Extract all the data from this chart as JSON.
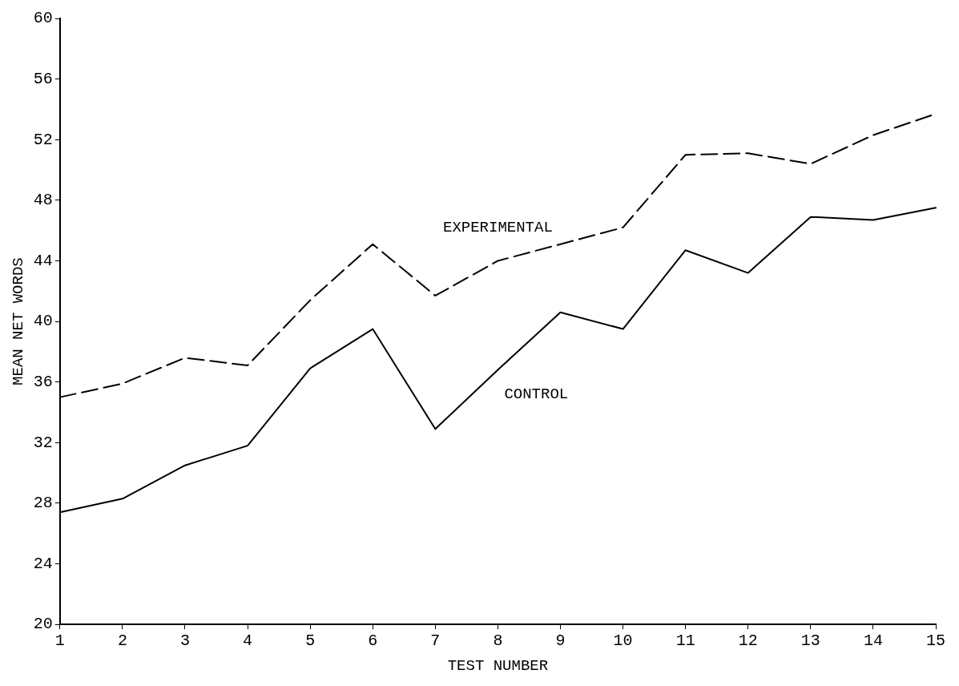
{
  "chart_data": {
    "type": "line",
    "xlabel": "TEST NUMBER",
    "ylabel": "MEAN NET WORDS",
    "x": [
      1,
      2,
      3,
      4,
      5,
      6,
      7,
      8,
      9,
      10,
      11,
      12,
      13,
      14,
      15
    ],
    "xlim": [
      1,
      15
    ],
    "xticks": [
      1,
      2,
      3,
      4,
      5,
      6,
      7,
      8,
      9,
      10,
      11,
      12,
      13,
      14,
      15
    ],
    "ylim": [
      20,
      60
    ],
    "yticks": [
      20,
      24,
      28,
      32,
      36,
      40,
      44,
      48,
      52,
      56,
      60
    ],
    "grid": false,
    "legend": false,
    "marker": "none",
    "series": [
      {
        "name": "EXPERIMENTAL",
        "color": "#000000",
        "line_style": "dashed",
        "values": [
          35.0,
          35.9,
          37.6,
          37.1,
          41.4,
          45.1,
          41.7,
          44.0,
          45.1,
          46.2,
          51.0,
          51.1,
          50.4,
          52.3,
          53.7
        ]
      },
      {
        "name": "CONTROL",
        "color": "#000000",
        "line_style": "solid",
        "values": [
          27.4,
          28.3,
          30.5,
          31.8,
          36.9,
          39.5,
          32.9,
          36.8,
          40.6,
          39.5,
          44.7,
          43.2,
          46.9,
          46.7,
          47.5
        ]
      }
    ]
  }
}
